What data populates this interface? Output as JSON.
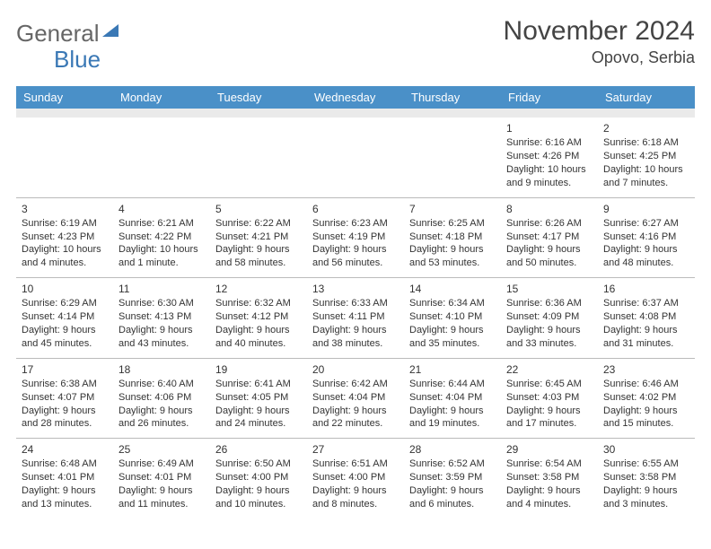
{
  "header": {
    "logo_general": "General",
    "logo_blue": "Blue",
    "month_title": "November 2024",
    "location": "Opovo, Serbia"
  },
  "colors": {
    "header_bg": "#4a90c8",
    "header_fg": "#ffffff",
    "spacer_bg": "#eaeaea",
    "border": "#bbbbbb",
    "text": "#333333",
    "logo_blue": "#3a78b5"
  },
  "day_headers": [
    "Sunday",
    "Monday",
    "Tuesday",
    "Wednesday",
    "Thursday",
    "Friday",
    "Saturday"
  ],
  "weeks": [
    [
      {
        "empty": true
      },
      {
        "empty": true
      },
      {
        "empty": true
      },
      {
        "empty": true
      },
      {
        "empty": true
      },
      {
        "num": "1",
        "sunrise": "Sunrise: 6:16 AM",
        "sunset": "Sunset: 4:26 PM",
        "daylight": "Daylight: 10 hours and 9 minutes."
      },
      {
        "num": "2",
        "sunrise": "Sunrise: 6:18 AM",
        "sunset": "Sunset: 4:25 PM",
        "daylight": "Daylight: 10 hours and 7 minutes."
      }
    ],
    [
      {
        "num": "3",
        "sunrise": "Sunrise: 6:19 AM",
        "sunset": "Sunset: 4:23 PM",
        "daylight": "Daylight: 10 hours and 4 minutes."
      },
      {
        "num": "4",
        "sunrise": "Sunrise: 6:21 AM",
        "sunset": "Sunset: 4:22 PM",
        "daylight": "Daylight: 10 hours and 1 minute."
      },
      {
        "num": "5",
        "sunrise": "Sunrise: 6:22 AM",
        "sunset": "Sunset: 4:21 PM",
        "daylight": "Daylight: 9 hours and 58 minutes."
      },
      {
        "num": "6",
        "sunrise": "Sunrise: 6:23 AM",
        "sunset": "Sunset: 4:19 PM",
        "daylight": "Daylight: 9 hours and 56 minutes."
      },
      {
        "num": "7",
        "sunrise": "Sunrise: 6:25 AM",
        "sunset": "Sunset: 4:18 PM",
        "daylight": "Daylight: 9 hours and 53 minutes."
      },
      {
        "num": "8",
        "sunrise": "Sunrise: 6:26 AM",
        "sunset": "Sunset: 4:17 PM",
        "daylight": "Daylight: 9 hours and 50 minutes."
      },
      {
        "num": "9",
        "sunrise": "Sunrise: 6:27 AM",
        "sunset": "Sunset: 4:16 PM",
        "daylight": "Daylight: 9 hours and 48 minutes."
      }
    ],
    [
      {
        "num": "10",
        "sunrise": "Sunrise: 6:29 AM",
        "sunset": "Sunset: 4:14 PM",
        "daylight": "Daylight: 9 hours and 45 minutes."
      },
      {
        "num": "11",
        "sunrise": "Sunrise: 6:30 AM",
        "sunset": "Sunset: 4:13 PM",
        "daylight": "Daylight: 9 hours and 43 minutes."
      },
      {
        "num": "12",
        "sunrise": "Sunrise: 6:32 AM",
        "sunset": "Sunset: 4:12 PM",
        "daylight": "Daylight: 9 hours and 40 minutes."
      },
      {
        "num": "13",
        "sunrise": "Sunrise: 6:33 AM",
        "sunset": "Sunset: 4:11 PM",
        "daylight": "Daylight: 9 hours and 38 minutes."
      },
      {
        "num": "14",
        "sunrise": "Sunrise: 6:34 AM",
        "sunset": "Sunset: 4:10 PM",
        "daylight": "Daylight: 9 hours and 35 minutes."
      },
      {
        "num": "15",
        "sunrise": "Sunrise: 6:36 AM",
        "sunset": "Sunset: 4:09 PM",
        "daylight": "Daylight: 9 hours and 33 minutes."
      },
      {
        "num": "16",
        "sunrise": "Sunrise: 6:37 AM",
        "sunset": "Sunset: 4:08 PM",
        "daylight": "Daylight: 9 hours and 31 minutes."
      }
    ],
    [
      {
        "num": "17",
        "sunrise": "Sunrise: 6:38 AM",
        "sunset": "Sunset: 4:07 PM",
        "daylight": "Daylight: 9 hours and 28 minutes."
      },
      {
        "num": "18",
        "sunrise": "Sunrise: 6:40 AM",
        "sunset": "Sunset: 4:06 PM",
        "daylight": "Daylight: 9 hours and 26 minutes."
      },
      {
        "num": "19",
        "sunrise": "Sunrise: 6:41 AM",
        "sunset": "Sunset: 4:05 PM",
        "daylight": "Daylight: 9 hours and 24 minutes."
      },
      {
        "num": "20",
        "sunrise": "Sunrise: 6:42 AM",
        "sunset": "Sunset: 4:04 PM",
        "daylight": "Daylight: 9 hours and 22 minutes."
      },
      {
        "num": "21",
        "sunrise": "Sunrise: 6:44 AM",
        "sunset": "Sunset: 4:04 PM",
        "daylight": "Daylight: 9 hours and 19 minutes."
      },
      {
        "num": "22",
        "sunrise": "Sunrise: 6:45 AM",
        "sunset": "Sunset: 4:03 PM",
        "daylight": "Daylight: 9 hours and 17 minutes."
      },
      {
        "num": "23",
        "sunrise": "Sunrise: 6:46 AM",
        "sunset": "Sunset: 4:02 PM",
        "daylight": "Daylight: 9 hours and 15 minutes."
      }
    ],
    [
      {
        "num": "24",
        "sunrise": "Sunrise: 6:48 AM",
        "sunset": "Sunset: 4:01 PM",
        "daylight": "Daylight: 9 hours and 13 minutes."
      },
      {
        "num": "25",
        "sunrise": "Sunrise: 6:49 AM",
        "sunset": "Sunset: 4:01 PM",
        "daylight": "Daylight: 9 hours and 11 minutes."
      },
      {
        "num": "26",
        "sunrise": "Sunrise: 6:50 AM",
        "sunset": "Sunset: 4:00 PM",
        "daylight": "Daylight: 9 hours and 10 minutes."
      },
      {
        "num": "27",
        "sunrise": "Sunrise: 6:51 AM",
        "sunset": "Sunset: 4:00 PM",
        "daylight": "Daylight: 9 hours and 8 minutes."
      },
      {
        "num": "28",
        "sunrise": "Sunrise: 6:52 AM",
        "sunset": "Sunset: 3:59 PM",
        "daylight": "Daylight: 9 hours and 6 minutes."
      },
      {
        "num": "29",
        "sunrise": "Sunrise: 6:54 AM",
        "sunset": "Sunset: 3:58 PM",
        "daylight": "Daylight: 9 hours and 4 minutes."
      },
      {
        "num": "30",
        "sunrise": "Sunrise: 6:55 AM",
        "sunset": "Sunset: 3:58 PM",
        "daylight": "Daylight: 9 hours and 3 minutes."
      }
    ]
  ]
}
